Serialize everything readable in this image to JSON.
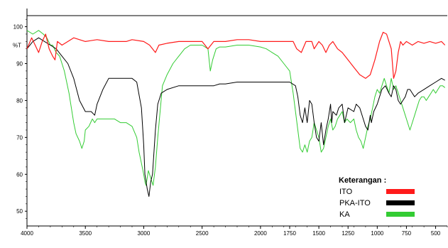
{
  "chart_data": {
    "type": "line",
    "title": "",
    "xlabel": "",
    "ylabel": "%T",
    "xlim": [
      4000,
      400
    ],
    "ylim": [
      46,
      103
    ],
    "x_ticks": [
      4000,
      3500,
      3000,
      2500,
      2000,
      1750,
      1500,
      1250,
      1000,
      750,
      500
    ],
    "y_ticks": [
      100,
      90,
      80,
      70,
      60,
      50
    ],
    "y_unit_label": "%T",
    "grid": false,
    "legend_placement": "bottom-right",
    "legend_title": "Keterangan :",
    "series": [
      {
        "name": "ITO",
        "color": "#ff1a1a",
        "points": [
          [
            4000,
            94
          ],
          [
            3960,
            97
          ],
          [
            3930,
            95
          ],
          [
            3900,
            93
          ],
          [
            3870,
            96
          ],
          [
            3840,
            98
          ],
          [
            3810,
            94
          ],
          [
            3780,
            92
          ],
          [
            3760,
            91
          ],
          [
            3740,
            96
          ],
          [
            3700,
            95
          ],
          [
            3650,
            96
          ],
          [
            3600,
            97
          ],
          [
            3500,
            96
          ],
          [
            3400,
            96.5
          ],
          [
            3300,
            96
          ],
          [
            3200,
            96
          ],
          [
            3150,
            96
          ],
          [
            3100,
            96.5
          ],
          [
            3000,
            96
          ],
          [
            2950,
            95
          ],
          [
            2900,
            93
          ],
          [
            2870,
            95
          ],
          [
            2800,
            95.5
          ],
          [
            2700,
            96
          ],
          [
            2600,
            96
          ],
          [
            2500,
            96
          ],
          [
            2450,
            94
          ],
          [
            2400,
            96
          ],
          [
            2300,
            96
          ],
          [
            2200,
            96.5
          ],
          [
            2100,
            96.5
          ],
          [
            2000,
            96
          ],
          [
            1900,
            96
          ],
          [
            1850,
            96
          ],
          [
            1800,
            96
          ],
          [
            1720,
            96
          ],
          [
            1690,
            94
          ],
          [
            1650,
            93
          ],
          [
            1610,
            96
          ],
          [
            1560,
            96
          ],
          [
            1540,
            94
          ],
          [
            1500,
            96
          ],
          [
            1470,
            95
          ],
          [
            1440,
            93
          ],
          [
            1410,
            95
          ],
          [
            1380,
            96
          ],
          [
            1340,
            94
          ],
          [
            1300,
            93
          ],
          [
            1250,
            91
          ],
          [
            1200,
            89
          ],
          [
            1150,
            87
          ],
          [
            1100,
            86
          ],
          [
            1060,
            87
          ],
          [
            1020,
            91
          ],
          [
            980,
            96
          ],
          [
            950,
            98.5
          ],
          [
            920,
            98
          ],
          [
            880,
            94
          ],
          [
            860,
            86
          ],
          [
            840,
            88
          ],
          [
            820,
            93
          ],
          [
            800,
            96
          ],
          [
            780,
            95
          ],
          [
            750,
            96
          ],
          [
            700,
            95
          ],
          [
            650,
            96
          ],
          [
            600,
            95.5
          ],
          [
            550,
            96
          ],
          [
            500,
            95.5
          ],
          [
            450,
            96
          ],
          [
            420,
            95
          ]
        ]
      },
      {
        "name": "PKA-ITO",
        "color": "#000000",
        "points": [
          [
            4000,
            94
          ],
          [
            3950,
            96
          ],
          [
            3900,
            97
          ],
          [
            3850,
            96
          ],
          [
            3800,
            95
          ],
          [
            3750,
            94
          ],
          [
            3700,
            92
          ],
          [
            3650,
            90
          ],
          [
            3600,
            86
          ],
          [
            3550,
            80
          ],
          [
            3500,
            77
          ],
          [
            3450,
            77
          ],
          [
            3420,
            76
          ],
          [
            3400,
            79
          ],
          [
            3350,
            83
          ],
          [
            3300,
            86
          ],
          [
            3250,
            86
          ],
          [
            3200,
            86
          ],
          [
            3150,
            86
          ],
          [
            3100,
            86
          ],
          [
            3060,
            85
          ],
          [
            3020,
            78
          ],
          [
            3000,
            68
          ],
          [
            2990,
            60
          ],
          [
            2970,
            56
          ],
          [
            2955,
            54
          ],
          [
            2940,
            58
          ],
          [
            2925,
            60
          ],
          [
            2900,
            72
          ],
          [
            2880,
            79
          ],
          [
            2850,
            82
          ],
          [
            2800,
            83
          ],
          [
            2700,
            84
          ],
          [
            2600,
            84
          ],
          [
            2500,
            84
          ],
          [
            2450,
            84
          ],
          [
            2400,
            84
          ],
          [
            2350,
            84.5
          ],
          [
            2300,
            84.5
          ],
          [
            2200,
            85
          ],
          [
            2100,
            85
          ],
          [
            2000,
            85
          ],
          [
            1900,
            85
          ],
          [
            1800,
            85
          ],
          [
            1750,
            85
          ],
          [
            1700,
            84
          ],
          [
            1680,
            81
          ],
          [
            1660,
            76
          ],
          [
            1640,
            74
          ],
          [
            1620,
            78
          ],
          [
            1600,
            74
          ],
          [
            1580,
            80
          ],
          [
            1560,
            79
          ],
          [
            1540,
            74
          ],
          [
            1520,
            70
          ],
          [
            1500,
            69
          ],
          [
            1480,
            74
          ],
          [
            1460,
            68
          ],
          [
            1440,
            72
          ],
          [
            1420,
            75
          ],
          [
            1400,
            79
          ],
          [
            1390,
            74
          ],
          [
            1380,
            77
          ],
          [
            1350,
            76
          ],
          [
            1330,
            78
          ],
          [
            1300,
            79
          ],
          [
            1280,
            74
          ],
          [
            1250,
            78
          ],
          [
            1200,
            77
          ],
          [
            1180,
            79
          ],
          [
            1150,
            78
          ],
          [
            1120,
            75
          ],
          [
            1100,
            73
          ],
          [
            1080,
            72
          ],
          [
            1060,
            76
          ],
          [
            1050,
            74
          ],
          [
            1030,
            77
          ],
          [
            1000,
            79
          ],
          [
            980,
            81
          ],
          [
            960,
            83
          ],
          [
            930,
            84
          ],
          [
            900,
            82
          ],
          [
            880,
            81
          ],
          [
            860,
            84
          ],
          [
            840,
            83
          ],
          [
            820,
            80
          ],
          [
            800,
            79
          ],
          [
            780,
            80
          ],
          [
            760,
            81
          ],
          [
            740,
            83
          ],
          [
            720,
            83
          ],
          [
            700,
            82
          ],
          [
            680,
            81
          ],
          [
            650,
            82
          ],
          [
            600,
            83
          ],
          [
            550,
            84
          ],
          [
            500,
            85
          ],
          [
            450,
            86
          ],
          [
            420,
            85.5
          ]
        ]
      },
      {
        "name": "KA",
        "color": "#33cc33",
        "points": [
          [
            4000,
            99
          ],
          [
            3950,
            98
          ],
          [
            3900,
            99
          ],
          [
            3860,
            98
          ],
          [
            3830,
            97
          ],
          [
            3800,
            95
          ],
          [
            3780,
            95
          ],
          [
            3750,
            93
          ],
          [
            3720,
            92
          ],
          [
            3700,
            90
          ],
          [
            3680,
            88
          ],
          [
            3660,
            85
          ],
          [
            3640,
            82
          ],
          [
            3620,
            78
          ],
          [
            3600,
            74
          ],
          [
            3580,
            71
          ],
          [
            3550,
            69
          ],
          [
            3530,
            67
          ],
          [
            3510,
            69
          ],
          [
            3500,
            72
          ],
          [
            3470,
            73
          ],
          [
            3440,
            75
          ],
          [
            3420,
            74
          ],
          [
            3400,
            75
          ],
          [
            3350,
            75
          ],
          [
            3300,
            75
          ],
          [
            3250,
            75
          ],
          [
            3200,
            74
          ],
          [
            3150,
            74
          ],
          [
            3100,
            73
          ],
          [
            3060,
            70
          ],
          [
            3040,
            66
          ],
          [
            3020,
            63
          ],
          [
            3000,
            60
          ],
          [
            2990,
            58
          ],
          [
            2980,
            57
          ],
          [
            2960,
            61
          ],
          [
            2940,
            59
          ],
          [
            2920,
            57
          ],
          [
            2900,
            62
          ],
          [
            2880,
            70
          ],
          [
            2860,
            77
          ],
          [
            2840,
            84
          ],
          [
            2800,
            87
          ],
          [
            2750,
            90
          ],
          [
            2700,
            92
          ],
          [
            2650,
            94
          ],
          [
            2600,
            95
          ],
          [
            2550,
            95
          ],
          [
            2500,
            95
          ],
          [
            2450,
            94
          ],
          [
            2430,
            88
          ],
          [
            2410,
            91
          ],
          [
            2380,
            94
          ],
          [
            2350,
            94.5
          ],
          [
            2300,
            94.5
          ],
          [
            2200,
            95
          ],
          [
            2100,
            95
          ],
          [
            2000,
            94.5
          ],
          [
            1950,
            94
          ],
          [
            1900,
            93
          ],
          [
            1850,
            92
          ],
          [
            1800,
            90
          ],
          [
            1750,
            88
          ],
          [
            1720,
            82
          ],
          [
            1700,
            77
          ],
          [
            1680,
            72
          ],
          [
            1660,
            67
          ],
          [
            1640,
            66
          ],
          [
            1620,
            68
          ],
          [
            1600,
            66
          ],
          [
            1580,
            69
          ],
          [
            1560,
            70
          ],
          [
            1540,
            74
          ],
          [
            1520,
            72
          ],
          [
            1500,
            70
          ],
          [
            1480,
            66
          ],
          [
            1460,
            67
          ],
          [
            1440,
            70
          ],
          [
            1420,
            73
          ],
          [
            1400,
            75
          ],
          [
            1380,
            72
          ],
          [
            1360,
            73
          ],
          [
            1340,
            75
          ],
          [
            1320,
            76
          ],
          [
            1300,
            77
          ],
          [
            1280,
            74
          ],
          [
            1260,
            75
          ],
          [
            1230,
            74
          ],
          [
            1200,
            75
          ],
          [
            1180,
            72
          ],
          [
            1160,
            70
          ],
          [
            1140,
            69
          ],
          [
            1120,
            67
          ],
          [
            1100,
            70
          ],
          [
            1080,
            73
          ],
          [
            1060,
            75
          ],
          [
            1040,
            78
          ],
          [
            1020,
            81
          ],
          [
            1000,
            83
          ],
          [
            980,
            82
          ],
          [
            960,
            84
          ],
          [
            940,
            86
          ],
          [
            920,
            84
          ],
          [
            900,
            82
          ],
          [
            880,
            86
          ],
          [
            860,
            83
          ],
          [
            840,
            84
          ],
          [
            820,
            82
          ],
          [
            800,
            80
          ],
          [
            780,
            78
          ],
          [
            760,
            76
          ],
          [
            740,
            74
          ],
          [
            720,
            72
          ],
          [
            700,
            74
          ],
          [
            680,
            76
          ],
          [
            660,
            78
          ],
          [
            640,
            80
          ],
          [
            620,
            81
          ],
          [
            600,
            81
          ],
          [
            580,
            80
          ],
          [
            560,
            81
          ],
          [
            540,
            82
          ],
          [
            520,
            83
          ],
          [
            500,
            82
          ],
          [
            480,
            83
          ],
          [
            460,
            84
          ],
          [
            440,
            84
          ],
          [
            420,
            83.5
          ]
        ]
      }
    ]
  }
}
